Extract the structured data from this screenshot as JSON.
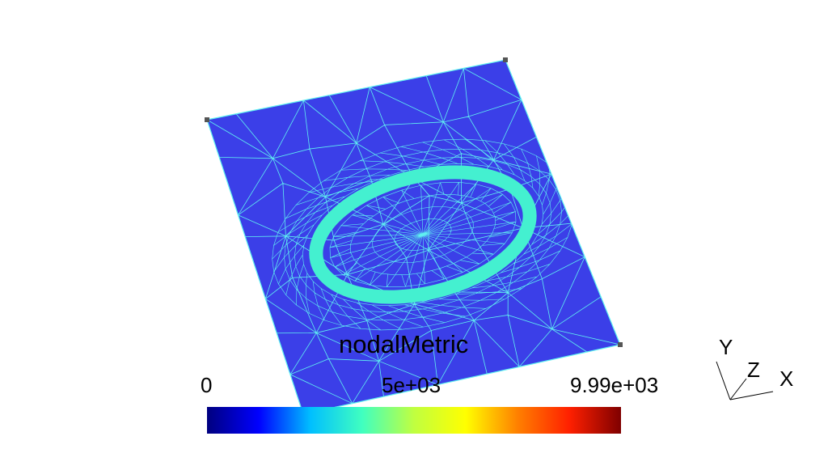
{
  "scalar_bar": {
    "title": "nodalMetric",
    "ticks": [
      "0",
      "5e+03",
      "9.99e+03"
    ],
    "min": 0,
    "max": 9990,
    "colormap": [
      "#00007f",
      "#0000ff",
      "#00bfff",
      "#40ffc0",
      "#c0ff40",
      "#ffff00",
      "#ff8000",
      "#ff2000",
      "#7f0000"
    ]
  },
  "axes": {
    "x": "X",
    "y": "Y",
    "z": "Z"
  },
  "colors": {
    "mesh_fill": "#3b3fe8",
    "mesh_edges": "#5ff0f0",
    "refined_band": "#44f0d0",
    "background": "#ffffff"
  }
}
